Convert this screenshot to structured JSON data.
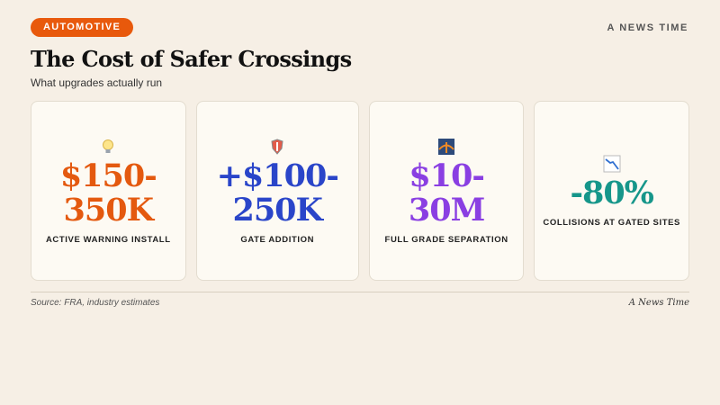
{
  "header": {
    "tag": "AUTOMOTIVE",
    "brand": "A NEWS TIME",
    "title": "The Cost of Safer Crossings",
    "subtitle": "What upgrades actually run"
  },
  "cards": [
    {
      "value": "$150-350K",
      "label": "ACTIVE WARNING INSTALL",
      "color": "#e4590f"
    },
    {
      "value": "+$100-250K",
      "label": "GATE ADDITION",
      "color": "#2a45c9"
    },
    {
      "value": "$10-30M",
      "label": "FULL GRADE SEPARATION",
      "color": "#8a3fe2"
    },
    {
      "value": "-80%",
      "label": "COLLISIONS AT GATED SITES",
      "color": "#16968a"
    }
  ],
  "footer": {
    "source": "Source: FRA, industry estimates",
    "credit": "A News Time"
  }
}
